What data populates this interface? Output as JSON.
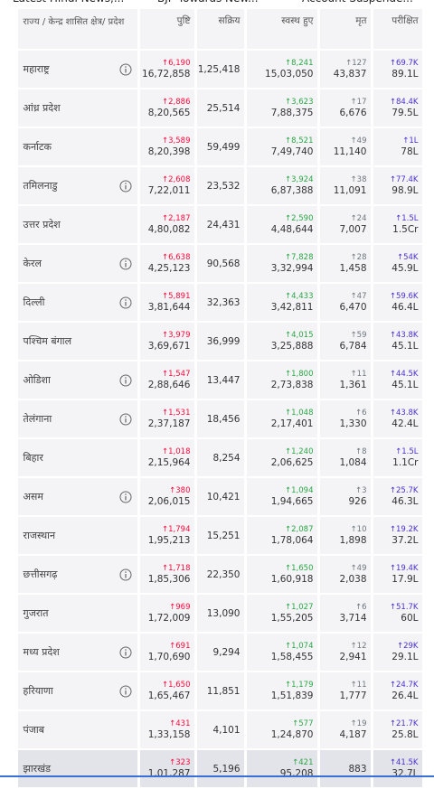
{
  "tabs": [
    "Latest Hindi News,...",
    "BJP Towards New...",
    "Account Suspende..."
  ],
  "table": {
    "headers": [
      "राज्य / केन्द्र शासित क्षेत्र/ प्रदेश",
      "पुष्टि",
      "सक्रिय",
      "स्वस्थ हुए",
      "मृत",
      "परीक्षित"
    ],
    "rows": [
      {
        "state": "महाराष्ट्र",
        "info": true,
        "confirmed_delta": "↑6,190",
        "confirmed": "16,72,858",
        "active": "1,25,418",
        "recovered_delta": "↑8,241",
        "recovered": "15,03,050",
        "deceased_delta": "↑127",
        "deceased": "43,837",
        "tested_delta": "↑69.7K",
        "tested": "89.1L"
      },
      {
        "state": "आंध्र प्रदेश",
        "info": false,
        "confirmed_delta": "↑2,886",
        "confirmed": "8,20,565",
        "active": "25,514",
        "recovered_delta": "↑3,623",
        "recovered": "7,88,375",
        "deceased_delta": "↑17",
        "deceased": "6,676",
        "tested_delta": "↑84.4K",
        "tested": "79.5L"
      },
      {
        "state": "कर्नाटक",
        "info": false,
        "confirmed_delta": "↑3,589",
        "confirmed": "8,20,398",
        "active": "59,499",
        "recovered_delta": "↑8,521",
        "recovered": "7,49,740",
        "deceased_delta": "↑49",
        "deceased": "11,140",
        "tested_delta": "↑1L",
        "tested": "78L"
      },
      {
        "state": "तमिलनाडु",
        "info": true,
        "confirmed_delta": "↑2,608",
        "confirmed": "7,22,011",
        "active": "23,532",
        "recovered_delta": "↑3,924",
        "recovered": "6,87,388",
        "deceased_delta": "↑38",
        "deceased": "11,091",
        "tested_delta": "↑77.4K",
        "tested": "98.9L"
      },
      {
        "state": "उत्तर प्रदेश",
        "info": false,
        "confirmed_delta": "↑2,187",
        "confirmed": "4,80,082",
        "active": "24,431",
        "recovered_delta": "↑2,590",
        "recovered": "4,48,644",
        "deceased_delta": "↑24",
        "deceased": "7,007",
        "tested_delta": "↑1.5L",
        "tested": "1.5Cr"
      },
      {
        "state": "केरल",
        "info": true,
        "confirmed_delta": "↑6,638",
        "confirmed": "4,25,123",
        "active": "90,568",
        "recovered_delta": "↑7,828",
        "recovered": "3,32,994",
        "deceased_delta": "↑28",
        "deceased": "1,458",
        "tested_delta": "↑54K",
        "tested": "45.9L"
      },
      {
        "state": "दिल्ली",
        "info": true,
        "confirmed_delta": "↑5,891",
        "confirmed": "3,81,644",
        "active": "32,363",
        "recovered_delta": "↑4,433",
        "recovered": "3,42,811",
        "deceased_delta": "↑47",
        "deceased": "6,470",
        "tested_delta": "↑59.6K",
        "tested": "46.4L"
      },
      {
        "state": "पश्चिम बंगाल",
        "info": false,
        "confirmed_delta": "↑3,979",
        "confirmed": "3,69,671",
        "active": "36,999",
        "recovered_delta": "↑4,015",
        "recovered": "3,25,888",
        "deceased_delta": "↑59",
        "deceased": "6,784",
        "tested_delta": "↑43.8K",
        "tested": "45.1L"
      },
      {
        "state": "ओडिशा",
        "info": true,
        "confirmed_delta": "↑1,547",
        "confirmed": "2,88,646",
        "active": "13,447",
        "recovered_delta": "↑1,800",
        "recovered": "2,73,838",
        "deceased_delta": "↑11",
        "deceased": "1,361",
        "tested_delta": "↑44.5K",
        "tested": "45.1L"
      },
      {
        "state": "तेलंगाना",
        "info": true,
        "confirmed_delta": "↑1,531",
        "confirmed": "2,37,187",
        "active": "18,456",
        "recovered_delta": "↑1,048",
        "recovered": "2,17,401",
        "deceased_delta": "↑6",
        "deceased": "1,330",
        "tested_delta": "↑43.8K",
        "tested": "42.4L"
      },
      {
        "state": "बिहार",
        "info": false,
        "confirmed_delta": "↑1,018",
        "confirmed": "2,15,964",
        "active": "8,254",
        "recovered_delta": "↑1,240",
        "recovered": "2,06,625",
        "deceased_delta": "↑8",
        "deceased": "1,084",
        "tested_delta": "↑1.5L",
        "tested": "1.1Cr"
      },
      {
        "state": "असम",
        "info": true,
        "confirmed_delta": "↑380",
        "confirmed": "2,06,015",
        "active": "10,421",
        "recovered_delta": "↑1,094",
        "recovered": "1,94,665",
        "deceased_delta": "↑3",
        "deceased": "926",
        "tested_delta": "↑25.7K",
        "tested": "46.3L"
      },
      {
        "state": "राजस्थान",
        "info": false,
        "confirmed_delta": "↑1,794",
        "confirmed": "1,95,213",
        "active": "15,251",
        "recovered_delta": "↑2,087",
        "recovered": "1,78,064",
        "deceased_delta": "↑10",
        "deceased": "1,898",
        "tested_delta": "↑19.2K",
        "tested": "37.2L"
      },
      {
        "state": "छत्तीसगढ़",
        "info": true,
        "confirmed_delta": "↑1,718",
        "confirmed": "1,85,306",
        "active": "22,350",
        "recovered_delta": "↑1,650",
        "recovered": "1,60,918",
        "deceased_delta": "↑49",
        "deceased": "2,038",
        "tested_delta": "↑19.4K",
        "tested": "17.9L"
      },
      {
        "state": "गुजरात",
        "info": false,
        "confirmed_delta": "↑969",
        "confirmed": "1,72,009",
        "active": "13,090",
        "recovered_delta": "↑1,027",
        "recovered": "1,55,205",
        "deceased_delta": "↑6",
        "deceased": "3,714",
        "tested_delta": "↑51.7K",
        "tested": "60L"
      },
      {
        "state": "मध्य प्रदेश",
        "info": true,
        "confirmed_delta": "↑691",
        "confirmed": "1,70,690",
        "active": "9,294",
        "recovered_delta": "↑1,074",
        "recovered": "1,58,455",
        "deceased_delta": "↑12",
        "deceased": "2,941",
        "tested_delta": "↑29K",
        "tested": "29.1L"
      },
      {
        "state": "हरियाणा",
        "info": true,
        "confirmed_delta": "↑1,650",
        "confirmed": "1,65,467",
        "active": "11,851",
        "recovered_delta": "↑1,179",
        "recovered": "1,51,839",
        "deceased_delta": "↑11",
        "deceased": "1,777",
        "tested_delta": "↑24.7K",
        "tested": "26.4L"
      },
      {
        "state": "पंजाब",
        "info": false,
        "confirmed_delta": "↑431",
        "confirmed": "1,33,158",
        "active": "4,101",
        "recovered_delta": "↑577",
        "recovered": "1,24,870",
        "deceased_delta": "↑19",
        "deceased": "4,187",
        "tested_delta": "↑21.7K",
        "tested": "25.8L"
      },
      {
        "state": "झारखंड",
        "info": false,
        "confirmed_delta": "↑323",
        "confirmed": "1,01,287",
        "active": "5,196",
        "recovered_delta": "↑421",
        "recovered": "95,208",
        "deceased": "883",
        "tested_delta": "↑41.5K",
        "tested": "32.7L"
      }
    ]
  }
}
